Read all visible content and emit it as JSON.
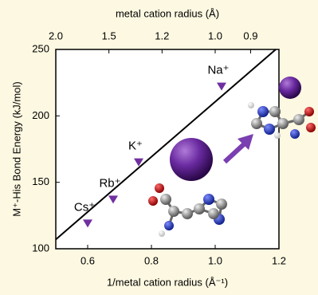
{
  "chart_data": {
    "type": "scatter",
    "x_label": "1/metal cation radius (Å⁻¹)",
    "y_label": "M⁺-His Bond Energy (kJ/mol)",
    "x2_label": "metal cation radius (Å)",
    "x": [
      0.6,
      0.68,
      0.76,
      1.02
    ],
    "values": [
      119,
      137,
      165,
      222
    ],
    "point_labels": [
      "Cs⁺",
      "Rb⁺",
      "K⁺",
      "Na⁺"
    ],
    "color": "#7030a0",
    "fit_line": {
      "x": [
        0.5,
        1.19
      ],
      "y": [
        107,
        250
      ],
      "color": "#000000"
    },
    "xlim": [
      0.5,
      1.2
    ],
    "xticks": [
      0.6,
      0.8,
      {
        "value": 1,
        "label": "1.0"
      },
      1.2
    ],
    "ylim": [
      100,
      250
    ],
    "yticks": [
      100,
      150,
      200,
      250
    ],
    "x2scale": "reciprocal",
    "x2ticks": [
      {
        "value": 2,
        "label": "2.0"
      },
      1.5,
      1.2,
      {
        "value": 1,
        "label": "1.0"
      },
      0.9
    ]
  }
}
